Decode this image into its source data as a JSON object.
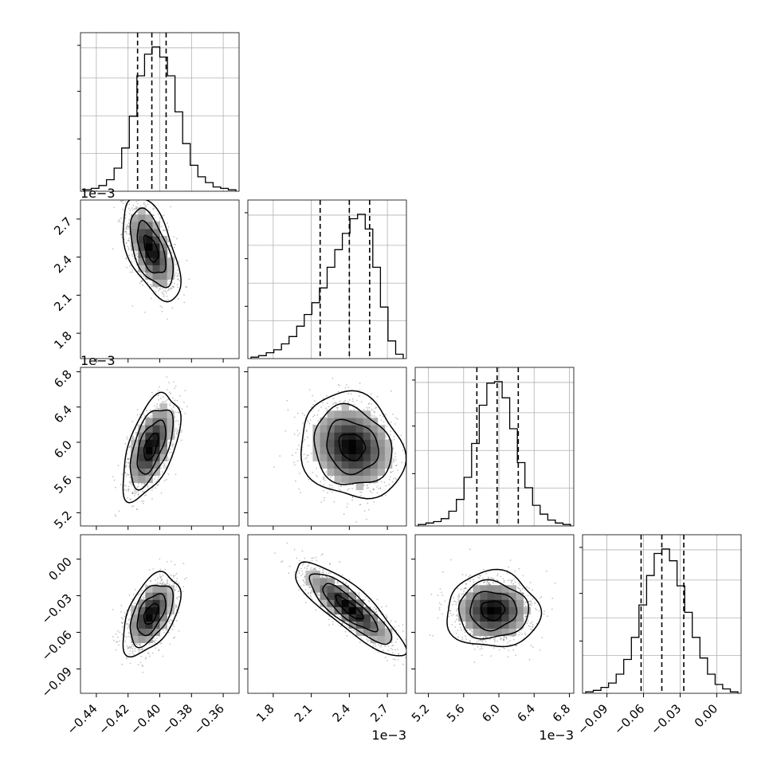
{
  "chart_data": {
    "type": "corner",
    "parameters": [
      {
        "index": 0,
        "axis_ticks": [
          -0.44,
          -0.42,
          -0.4,
          -0.38,
          -0.36
        ],
        "tick_labels": [
          "−0.44",
          "−0.42",
          "−0.40",
          "−0.38",
          "−0.36"
        ],
        "offset_label": "",
        "range": [
          -0.45,
          -0.35
        ]
      },
      {
        "index": 1,
        "axis_ticks": [
          1.8,
          2.1,
          2.4,
          2.7
        ],
        "tick_labels": [
          "1.8",
          "2.1",
          "2.4",
          "2.7"
        ],
        "offset_label": "1e−3",
        "range": [
          1.6,
          2.85
        ]
      },
      {
        "index": 2,
        "axis_ticks": [
          5.2,
          5.6,
          6.0,
          6.4,
          6.8
        ],
        "tick_labels": [
          "5.2",
          "5.6",
          "6.0",
          "6.4",
          "6.8"
        ],
        "offset_label": "1e−3",
        "range": [
          5.05,
          6.85
        ]
      },
      {
        "index": 3,
        "axis_ticks": [
          -0.09,
          -0.06,
          -0.03,
          0.0
        ],
        "tick_labels": [
          "−0.09",
          "−0.06",
          "−0.03",
          "0.00"
        ],
        "offset_label": "",
        "range": [
          -0.11,
          0.02
        ]
      }
    ],
    "marginals": [
      {
        "param": 0,
        "quantiles": [
          -0.414,
          -0.405,
          -0.396
        ],
        "counts": [
          1,
          2,
          4,
          8,
          16,
          30,
          52,
          80,
          95,
          100,
          93,
          80,
          55,
          33,
          18,
          10,
          6,
          3,
          2,
          1
        ]
      },
      {
        "param": 1,
        "quantiles": [
          2.17,
          2.4,
          2.56
        ],
        "counts": [
          1,
          2,
          4,
          6,
          10,
          15,
          22,
          30,
          38,
          48,
          62,
          74,
          85,
          95,
          98,
          88,
          62,
          35,
          12,
          3
        ]
      },
      {
        "param": 2,
        "quantiles": [
          5.75,
          5.98,
          6.22
        ],
        "counts": [
          1,
          2,
          3,
          5,
          10,
          18,
          33,
          56,
          82,
          97,
          98,
          87,
          66,
          43,
          26,
          14,
          8,
          4,
          2,
          1
        ]
      },
      {
        "param": 3,
        "quantiles": [
          -0.062,
          -0.045,
          -0.027
        ],
        "counts": [
          1,
          2,
          4,
          7,
          13,
          23,
          38,
          60,
          80,
          95,
          98,
          90,
          73,
          55,
          38,
          24,
          13,
          6,
          3,
          1
        ]
      }
    ],
    "pairs": [
      {
        "x": 0,
        "y": 1,
        "center": [
          -0.4055,
          2.465
        ],
        "sx": 0.0075,
        "sy": 0.17,
        "rho": -0.55
      },
      {
        "x": 0,
        "y": 2,
        "center": [
          -0.4055,
          5.95
        ],
        "sx": 0.0075,
        "sy": 0.25,
        "rho": 0.55
      },
      {
        "x": 1,
        "y": 2,
        "center": [
          2.42,
          5.95
        ],
        "sx": 0.17,
        "sy": 0.25,
        "rho": -0.15
      },
      {
        "x": 0,
        "y": 3,
        "center": [
          -0.4055,
          -0.045
        ],
        "sx": 0.0075,
        "sy": 0.014,
        "rho": 0.5
      },
      {
        "x": 1,
        "y": 3,
        "center": [
          2.4,
          -0.04
        ],
        "sx": 0.18,
        "sy": 0.016,
        "rho": -0.85
      },
      {
        "x": 2,
        "y": 3,
        "center": [
          5.93,
          -0.042
        ],
        "sx": 0.22,
        "sy": 0.013,
        "rho": 0.0
      }
    ],
    "grid": true,
    "colors": {
      "line": "#000000",
      "grid": "#b0b0b0",
      "points": "#555555"
    }
  }
}
